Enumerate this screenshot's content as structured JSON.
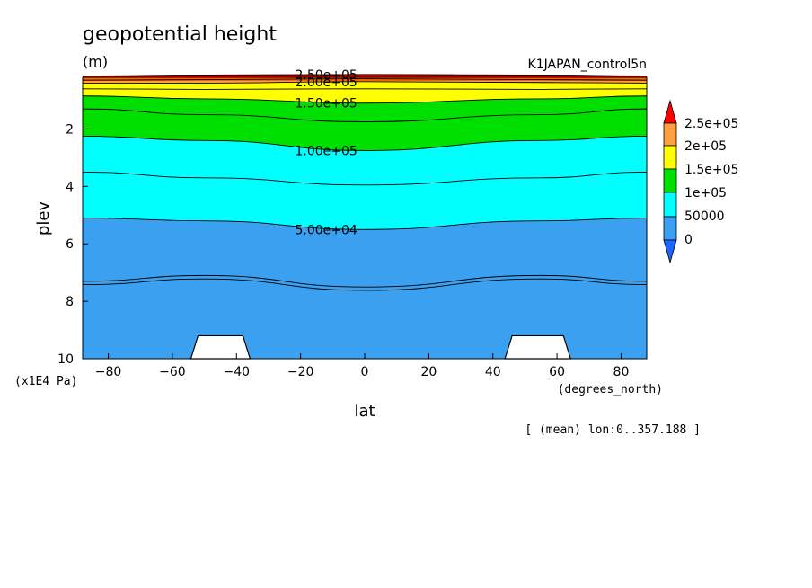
{
  "header": {
    "title": "geopotential height",
    "units": "(m)",
    "dataset": "K1JAPAN_control5n",
    "annotation": "[ (mean) lon:0..357.188 ]"
  },
  "chart_data": {
    "type": "contour",
    "title": "geopotential height",
    "units": "(m)",
    "xlabel": "lat",
    "xunits": "(degrees_north)",
    "ylabel": "plev",
    "yunits": "(x1E4 Pa)",
    "xlim": [
      -88,
      88
    ],
    "ylim": [
      10,
      0.2
    ],
    "xticks": [
      -80,
      -60,
      -40,
      -20,
      0,
      20,
      40,
      60,
      80
    ],
    "yticks": [
      2,
      4,
      6,
      8,
      10
    ],
    "contour_lines": [
      {
        "level": 250000,
        "label": "2.50e+05",
        "plev": [
          0.15,
          0.12,
          0.1,
          0.12,
          0.15
        ]
      },
      {
        "level": 225000,
        "label": "",
        "plev": [
          0.3,
          0.28,
          0.25,
          0.28,
          0.3
        ]
      },
      {
        "level": 200000,
        "label": "2.00e+05",
        "plev": [
          0.4,
          0.4,
          0.35,
          0.38,
          0.4
        ]
      },
      {
        "level": 175000,
        "label": "",
        "plev": [
          0.6,
          0.62,
          0.6,
          0.62,
          0.6
        ]
      },
      {
        "level": 150000,
        "label": "1.50e+05",
        "plev": [
          0.85,
          0.95,
          1.1,
          0.95,
          0.85
        ]
      },
      {
        "level": 125000,
        "label": "",
        "plev": [
          1.3,
          1.5,
          1.75,
          1.5,
          1.3
        ]
      },
      {
        "level": 100000,
        "label": "1.00e+05",
        "plev": [
          2.25,
          2.4,
          2.75,
          2.4,
          2.25
        ]
      },
      {
        "level": 75000,
        "label": "",
        "plev": [
          3.5,
          3.7,
          3.95,
          3.7,
          3.5
        ]
      },
      {
        "level": 50000,
        "label": "5.00e+04",
        "plev": [
          5.1,
          5.2,
          5.5,
          5.2,
          5.1
        ]
      },
      {
        "level": 25000,
        "label": "",
        "plev": [
          7.3,
          7.1,
          7.5,
          7.1,
          7.3
        ]
      }
    ],
    "contour_lats": [
      -88,
      -50,
      0,
      55,
      88
    ],
    "colorbar": {
      "levels": [
        "2.5e+05",
        "2e+05",
        "1.5e+05",
        "1e+05",
        "50000",
        "0"
      ],
      "colors": [
        "#ff0000",
        "#ffa040",
        "#ffff00",
        "#00e000",
        "#00ffff",
        "#3ca0f0",
        "#1e64ff"
      ]
    },
    "topography": [
      {
        "lat_start": -52,
        "lat_end": -38,
        "plev_top": 9.2
      },
      {
        "lat_start": 46,
        "lat_end": 62,
        "plev_top": 9.2
      }
    ],
    "grid": false
  }
}
